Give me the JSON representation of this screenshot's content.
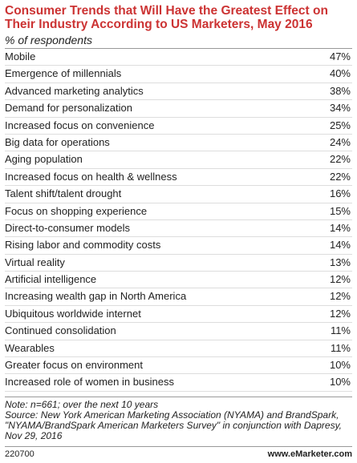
{
  "header": {
    "title": "Consumer Trends that Will Have the Greatest Effect on Their Industry According to US Marketers, May 2016",
    "subtitle": "% of respondents"
  },
  "table": {
    "rows": [
      [
        "Mobile",
        "47%"
      ],
      [
        "Emergence of millennials",
        "40%"
      ],
      [
        "Advanced marketing analytics",
        "38%"
      ],
      [
        "Demand for personalization",
        "34%"
      ],
      [
        "Increased focus on convenience",
        "25%"
      ],
      [
        "Big data for operations",
        "24%"
      ],
      [
        "Aging population",
        "22%"
      ],
      [
        "Increased focus on health & wellness",
        "22%"
      ],
      [
        "Talent shift/talent drought",
        "16%"
      ],
      [
        "Focus on shopping experience",
        "15%"
      ],
      [
        "Direct-to-consumer models",
        "14%"
      ],
      [
        "Rising labor and commodity costs",
        "14%"
      ],
      [
        "Virtual reality",
        "13%"
      ],
      [
        "Artificial intelligence",
        "12%"
      ],
      [
        "Increasing wealth gap in North America",
        "12%"
      ],
      [
        "Ubiquitous worldwide internet",
        "12%"
      ],
      [
        "Continued consolidation",
        "11%"
      ],
      [
        "Wearables",
        "11%"
      ],
      [
        "Greater focus on environment",
        "10%"
      ],
      [
        "Increased role of women in business",
        "10%"
      ]
    ]
  },
  "notes": [
    "Note: n=661; over the next 10 years",
    "Source: New York American Marketing Association (NYAMA) and BrandSpark, \"NYAMA/BrandSpark American Marketers Survey\" in conjunction with Dapresy, Nov 29, 2016"
  ],
  "footer": {
    "id": "220700",
    "site": "www.eMarketer.com"
  }
}
